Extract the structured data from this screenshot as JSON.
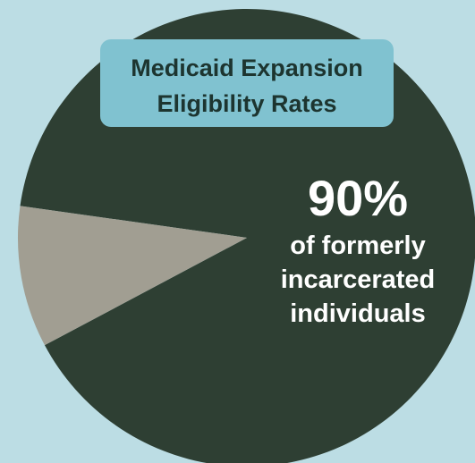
{
  "chart_data": {
    "type": "pie",
    "title": "Medicaid Expansion Eligibility Rates",
    "values": [
      90,
      10
    ],
    "value_labels": [
      "90%",
      null
    ],
    "colors": [
      "#2e3f33",
      "#a19e92"
    ],
    "annotation": "of formerly incarcerated individuals"
  }
}
